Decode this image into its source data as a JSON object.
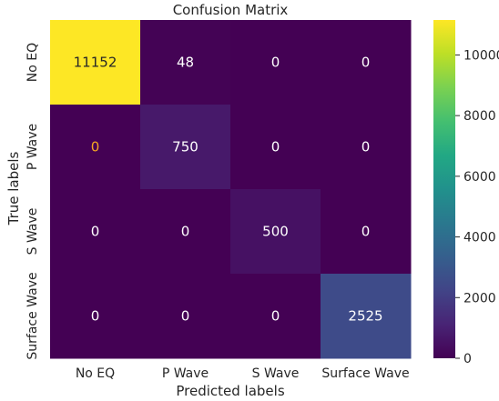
{
  "chart_data": {
    "type": "heatmap",
    "title": "Confusion Matrix",
    "xlabel": "Predicted labels",
    "ylabel": "True labels",
    "x_categories": [
      "No EQ",
      "P Wave",
      "S Wave",
      "Surface Wave"
    ],
    "y_categories": [
      "No EQ",
      "P Wave",
      "S Wave",
      "Surface Wave"
    ],
    "values": [
      [
        11152,
        48,
        0,
        0
      ],
      [
        0,
        750,
        0,
        0
      ],
      [
        0,
        0,
        500,
        0
      ],
      [
        0,
        0,
        0,
        2525
      ]
    ],
    "colormap": "viridis",
    "colorbar": {
      "range": [
        0,
        11152
      ],
      "ticks": [
        0,
        2000,
        4000,
        6000,
        8000,
        10000
      ]
    },
    "annotation_colors": {
      "light": "#ffffff",
      "dark": "#262626",
      "highlight": "#f5a623"
    },
    "highlighted_cells": [
      [
        1,
        0
      ]
    ]
  }
}
